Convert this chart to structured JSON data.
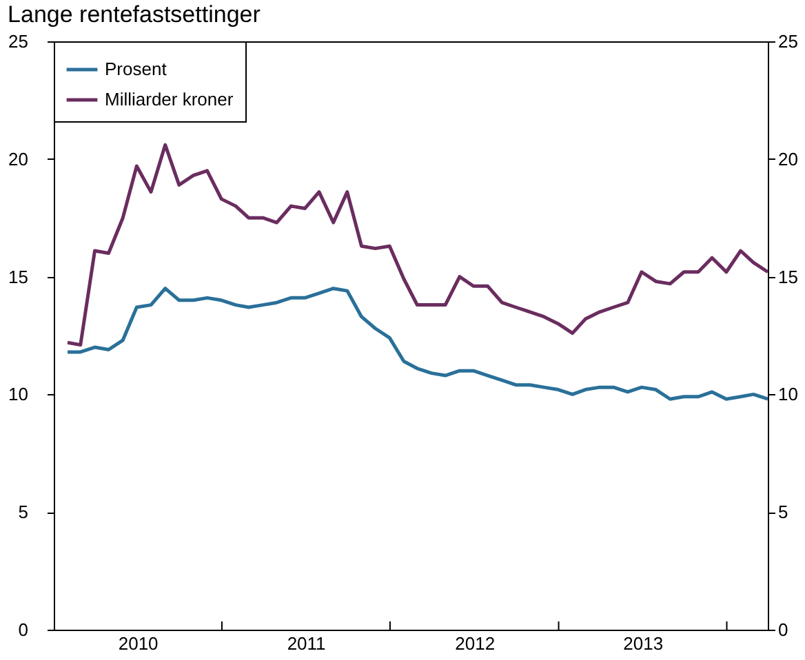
{
  "chart_data": {
    "type": "line",
    "title": "Lange rentefastsettinger",
    "x": [
      "2010-01-31",
      "2010-02-28",
      "2010-03-31",
      "2010-04-30",
      "2010-05-31",
      "2010-06-30",
      "2010-07-31",
      "2010-08-31",
      "2010-09-30",
      "2010-10-31",
      "2010-11-30",
      "2010-12-31",
      "2011-01-31",
      "2011-02-28",
      "2011-03-31",
      "2011-04-30",
      "2011-05-31",
      "2011-06-30",
      "2011-07-31",
      "2011-08-31",
      "2011-09-30",
      "2011-10-31",
      "2011-11-30",
      "2011-12-31",
      "2012-01-31",
      "2012-02-29",
      "2012-03-31",
      "2012-04-30",
      "2012-05-31",
      "2012-06-30",
      "2012-07-31",
      "2012-08-31",
      "2012-09-30",
      "2012-10-31",
      "2012-11-30",
      "2012-12-31",
      "2013-01-31",
      "2013-02-28",
      "2013-03-31",
      "2013-04-30",
      "2013-05-31",
      "2013-06-30",
      "2013-07-31",
      "2013-08-31",
      "2013-09-30",
      "2013-10-31",
      "2013-11-30",
      "2013-12-31",
      "2014-01-31",
      "2014-02-28",
      "2014-03-31"
    ],
    "series": [
      {
        "name": "Prosent",
        "color": "#2a7099",
        "values": [
          11.8,
          11.8,
          12.0,
          11.9,
          12.3,
          13.7,
          13.8,
          14.5,
          14.0,
          14.0,
          14.1,
          14.0,
          13.8,
          13.7,
          13.8,
          13.9,
          14.1,
          14.1,
          14.3,
          14.5,
          14.4,
          13.3,
          12.8,
          12.4,
          11.4,
          11.1,
          10.9,
          10.8,
          11.0,
          11.0,
          10.8,
          10.6,
          10.4,
          10.4,
          10.3,
          10.2,
          10.0,
          10.2,
          10.3,
          10.3,
          10.1,
          10.3,
          10.2,
          9.8,
          9.9,
          9.9,
          10.1,
          9.8,
          9.9,
          10.0,
          9.8
        ]
      },
      {
        "name": "Milliarder kroner",
        "color": "#6a2d5f",
        "values": [
          12.2,
          12.1,
          16.1,
          16.0,
          17.5,
          19.7,
          18.6,
          20.6,
          18.9,
          19.3,
          19.5,
          18.3,
          18.0,
          17.5,
          17.5,
          17.3,
          18.0,
          17.9,
          18.6,
          17.3,
          18.6,
          16.3,
          16.2,
          16.3,
          14.9,
          13.8,
          13.8,
          13.8,
          15.0,
          14.6,
          14.6,
          13.9,
          13.7,
          13.5,
          13.3,
          13.0,
          12.6,
          13.2,
          13.5,
          13.7,
          13.9,
          15.2,
          14.8,
          14.7,
          15.2,
          15.2,
          15.8,
          15.2,
          16.1,
          15.6,
          15.2
        ]
      }
    ],
    "xlim": [
      "2010-01-01",
      "2014-03-31"
    ],
    "xticks": [
      {
        "value": "2010-07-02",
        "label": "2010"
      },
      {
        "value": "2011-01-01",
        "label": null
      },
      {
        "value": "2011-07-02",
        "label": "2011"
      },
      {
        "value": "2012-01-01",
        "label": null
      },
      {
        "value": "2012-07-02",
        "label": "2012"
      },
      {
        "value": "2013-01-01",
        "label": null
      },
      {
        "value": "2013-07-02",
        "label": "2013"
      },
      {
        "value": "2014-01-01",
        "label": null
      }
    ],
    "ylim": [
      0,
      25
    ],
    "yticks": [
      0,
      5,
      10,
      15,
      20,
      25
    ],
    "y2lim": [
      0,
      25
    ],
    "y2ticks": [
      0,
      5,
      10,
      15,
      20,
      25
    ],
    "grid": false,
    "legend": "top left",
    "line_style": "solid",
    "marker": "none"
  }
}
